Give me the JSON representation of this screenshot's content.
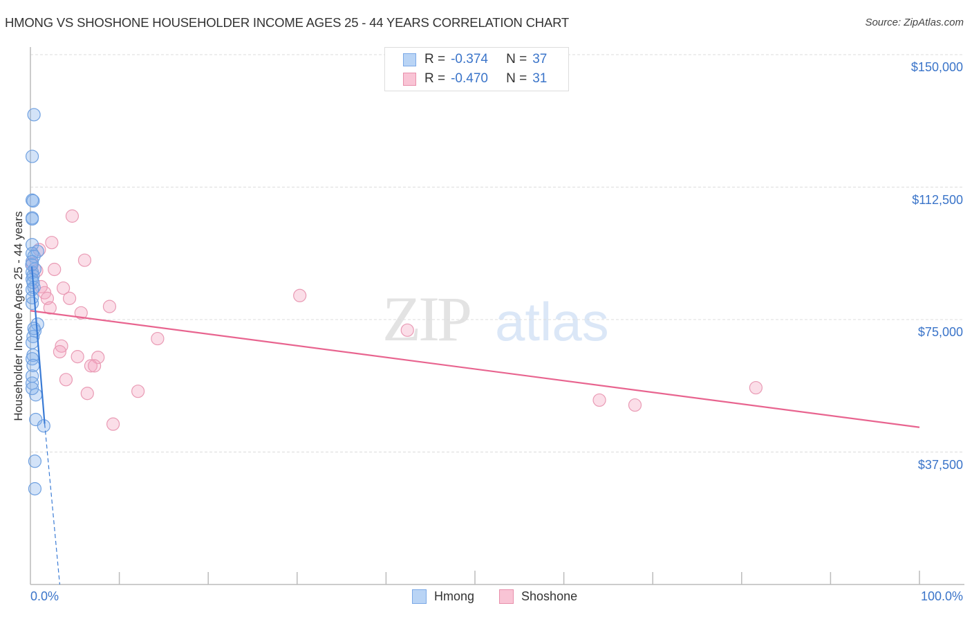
{
  "header": {
    "title": "HMONG VS SHOSHONE HOUSEHOLDER INCOME AGES 25 - 44 YEARS CORRELATION CHART",
    "source": "Source: ZipAtlas.com"
  },
  "watermark": {
    "zip": "ZIP",
    "atlas": "atlas"
  },
  "legend": {
    "rows": [
      {
        "r_label": "R =",
        "r_value": "-0.374",
        "n_label": "N =",
        "n_value": "37",
        "color": "#b9d4f5",
        "border": "#7aa8e6"
      },
      {
        "r_label": "R =",
        "r_value": "-0.470",
        "n_label": "N =",
        "n_value": "31",
        "color": "#f9c4d5",
        "border": "#e88fab"
      }
    ]
  },
  "bottom_legend": {
    "items": [
      {
        "label": "Hmong",
        "color": "#b9d4f5",
        "border": "#7aa8e6"
      },
      {
        "label": "Shoshone",
        "color": "#f9c4d5",
        "border": "#e88fab"
      }
    ]
  },
  "axes": {
    "y_title": "Householder Income Ages 25 - 44 years",
    "y_ticks": [
      "$150,000",
      "$112,500",
      "$75,000",
      "$37,500"
    ],
    "x_min_label": "0.0%",
    "x_max_label": "100.0%"
  },
  "colors": {
    "hmong": "#3a7bd5",
    "shoshone": "#e8648f",
    "tick_text": "#3a74c9"
  },
  "chart_data": {
    "type": "scatter",
    "title": "HMONG VS SHOSHONE HOUSEHOLDER INCOME AGES 25 - 44 YEARS CORRELATION CHART",
    "xlabel": "",
    "ylabel": "Householder Income Ages 25 - 44 years",
    "xlim": [
      0,
      100
    ],
    "ylim": [
      0,
      153500
    ],
    "x_tick_labels": [
      "0.0%",
      "100.0%"
    ],
    "y_tick_values": [
      37500,
      75000,
      112500,
      150000
    ],
    "grid": "horizontal dashed",
    "legend_position": "top-center and bottom",
    "series": [
      {
        "name": "Hmong",
        "R": -0.374,
        "N": 37,
        "points": [
          [
            0.4,
            133000
          ],
          [
            0.2,
            121200
          ],
          [
            0.2,
            108800
          ],
          [
            0.3,
            108600
          ],
          [
            0.2,
            103800
          ],
          [
            0.2,
            103500
          ],
          [
            0.2,
            96200
          ],
          [
            0.8,
            94300
          ],
          [
            0.2,
            93700
          ],
          [
            0.4,
            92900
          ],
          [
            0.2,
            91400
          ],
          [
            0.5,
            89300
          ],
          [
            0.2,
            88400
          ],
          [
            0.3,
            87400
          ],
          [
            0.2,
            86400
          ],
          [
            0.4,
            84100
          ],
          [
            0.2,
            83500
          ],
          [
            0.2,
            79600
          ],
          [
            0.8,
            73700
          ],
          [
            0.5,
            71800
          ],
          [
            0.3,
            70200
          ],
          [
            0.3,
            64900
          ],
          [
            0.2,
            63900
          ],
          [
            0.2,
            59000
          ],
          [
            0.2,
            57000
          ],
          [
            0.6,
            53700
          ],
          [
            0.6,
            46700
          ],
          [
            1.5,
            44900
          ],
          [
            0.5,
            34900
          ],
          [
            0.5,
            27100
          ],
          [
            0.1,
            90500
          ],
          [
            0.3,
            85500
          ],
          [
            0.2,
            81200
          ],
          [
            0.4,
            72500
          ],
          [
            0.2,
            68500
          ],
          [
            0.3,
            62000
          ],
          [
            0.2,
            55500
          ]
        ],
        "trendline": {
          "x0": 0,
          "y0": 90000,
          "x1": 1.6,
          "y1": 45500,
          "dashed_extension_to": [
            3.3,
            0
          ]
        }
      },
      {
        "name": "Shoshone",
        "R": -0.47,
        "N": 31,
        "points": [
          [
            4.7,
            104300
          ],
          [
            2.4,
            96800
          ],
          [
            6.1,
            91800
          ],
          [
            2.7,
            89200
          ],
          [
            3.7,
            83900
          ],
          [
            0.7,
            88800
          ],
          [
            1.2,
            84300
          ],
          [
            1.6,
            82600
          ],
          [
            1.9,
            81000
          ],
          [
            4.4,
            81000
          ],
          [
            2.2,
            78300
          ],
          [
            5.7,
            76900
          ],
          [
            8.9,
            78700
          ],
          [
            30.3,
            81800
          ],
          [
            42.4,
            72000
          ],
          [
            14.3,
            69600
          ],
          [
            3.5,
            67500
          ],
          [
            3.3,
            65900
          ],
          [
            5.3,
            64500
          ],
          [
            7.6,
            64300
          ],
          [
            6.8,
            61900
          ],
          [
            7.2,
            61900
          ],
          [
            4.0,
            58000
          ],
          [
            6.4,
            54100
          ],
          [
            12.1,
            54700
          ],
          [
            9.3,
            45400
          ],
          [
            64.0,
            52200
          ],
          [
            68.0,
            50800
          ],
          [
            81.6,
            55700
          ],
          [
            0.2,
            90900
          ],
          [
            1.0,
            94800
          ]
        ],
        "trendline": {
          "x0": 0,
          "y0": 77500,
          "x1": 100,
          "y1": 44500
        }
      }
    ]
  }
}
